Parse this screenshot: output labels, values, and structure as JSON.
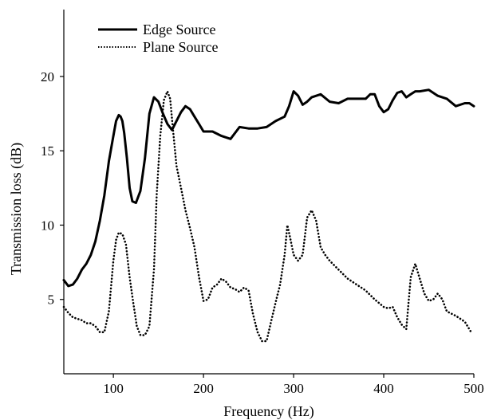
{
  "chart_data": {
    "type": "line",
    "title": "",
    "xlabel": "Frequency (Hz)",
    "ylabel": "Transmission loss (dB)",
    "xlim": [
      45,
      500
    ],
    "ylim": [
      0,
      24.5
    ],
    "xticks": [
      100,
      200,
      300,
      400,
      500
    ],
    "yticks": [
      5,
      10,
      15,
      20
    ],
    "tick_labels_x": [
      "100",
      "200",
      "300",
      "400",
      "500"
    ],
    "tick_labels_y": [
      "5",
      "10",
      "15",
      "20"
    ],
    "grid": false,
    "legend_position": "top-left",
    "series": [
      {
        "name": "Edge Source",
        "style": "solid",
        "color": "#000000",
        "x": [
          45,
          50,
          55,
          60,
          65,
          70,
          75,
          80,
          85,
          90,
          95,
          100,
          103,
          106,
          108,
          110,
          112,
          115,
          118,
          121,
          125,
          130,
          135,
          140,
          145,
          150,
          155,
          160,
          165,
          170,
          175,
          180,
          185,
          190,
          195,
          200,
          210,
          220,
          230,
          240,
          250,
          260,
          270,
          280,
          290,
          295,
          300,
          305,
          310,
          315,
          320,
          330,
          340,
          350,
          360,
          370,
          380,
          385,
          390,
          395,
          400,
          405,
          410,
          415,
          420,
          425,
          430,
          435,
          440,
          450,
          460,
          470,
          480,
          490,
          495,
          500
        ],
        "y": [
          6.3,
          5.9,
          6.0,
          6.4,
          7.0,
          7.4,
          8.0,
          8.9,
          10.3,
          12.0,
          14.3,
          16.0,
          17.0,
          17.4,
          17.3,
          17.0,
          16.2,
          14.5,
          12.5,
          11.6,
          11.5,
          12.3,
          14.5,
          17.5,
          18.6,
          18.3,
          17.5,
          16.8,
          16.4,
          17.0,
          17.6,
          18.0,
          17.8,
          17.3,
          16.8,
          16.3,
          16.3,
          16.0,
          15.8,
          16.6,
          16.5,
          16.5,
          16.6,
          17.0,
          17.3,
          18.0,
          19.0,
          18.7,
          18.1,
          18.3,
          18.6,
          18.8,
          18.3,
          18.2,
          18.5,
          18.5,
          18.5,
          18.8,
          18.8,
          18.0,
          17.6,
          17.8,
          18.4,
          18.9,
          19.0,
          18.6,
          18.8,
          19.0,
          19.0,
          19.1,
          18.7,
          18.5,
          18.0,
          18.2,
          18.2,
          18.0
        ]
      },
      {
        "name": "Plane Source",
        "style": "dotted",
        "color": "#000000",
        "x": [
          45,
          50,
          55,
          60,
          65,
          70,
          75,
          80,
          85,
          90,
          95,
          100,
          103,
          106,
          110,
          114,
          118,
          122,
          126,
          130,
          135,
          140,
          145,
          148,
          152,
          156,
          160,
          163,
          166,
          170,
          175,
          180,
          185,
          190,
          195,
          200,
          205,
          210,
          215,
          220,
          225,
          230,
          235,
          240,
          245,
          250,
          255,
          260,
          265,
          270,
          275,
          280,
          285,
          290,
          293,
          296,
          300,
          305,
          310,
          315,
          320,
          325,
          330,
          335,
          340,
          350,
          360,
          370,
          380,
          390,
          400,
          405,
          410,
          415,
          420,
          425,
          430,
          435,
          440,
          445,
          450,
          455,
          460,
          465,
          470,
          480,
          490,
          497
        ],
        "y": [
          4.5,
          4.1,
          3.8,
          3.7,
          3.6,
          3.4,
          3.4,
          3.2,
          2.8,
          2.8,
          4.2,
          7.6,
          9.0,
          9.5,
          9.4,
          8.7,
          6.5,
          4.8,
          3.2,
          2.6,
          2.6,
          3.2,
          7.0,
          12.0,
          16.0,
          18.4,
          19.0,
          18.5,
          16.5,
          14.0,
          12.5,
          11.0,
          9.8,
          8.5,
          6.5,
          4.9,
          5.0,
          5.8,
          6.0,
          6.4,
          6.2,
          5.8,
          5.7,
          5.5,
          5.8,
          5.6,
          4.0,
          2.8,
          2.2,
          2.2,
          3.5,
          4.8,
          6.0,
          8.0,
          10.0,
          9.2,
          8.0,
          7.6,
          8.0,
          10.5,
          11.0,
          10.3,
          8.5,
          8.0,
          7.6,
          7.0,
          6.4,
          6.0,
          5.6,
          5.0,
          4.5,
          4.4,
          4.5,
          3.8,
          3.3,
          3.0,
          6.5,
          7.4,
          6.4,
          5.4,
          4.9,
          5.0,
          5.4,
          5.0,
          4.2,
          3.9,
          3.5,
          2.8
        ]
      }
    ]
  }
}
